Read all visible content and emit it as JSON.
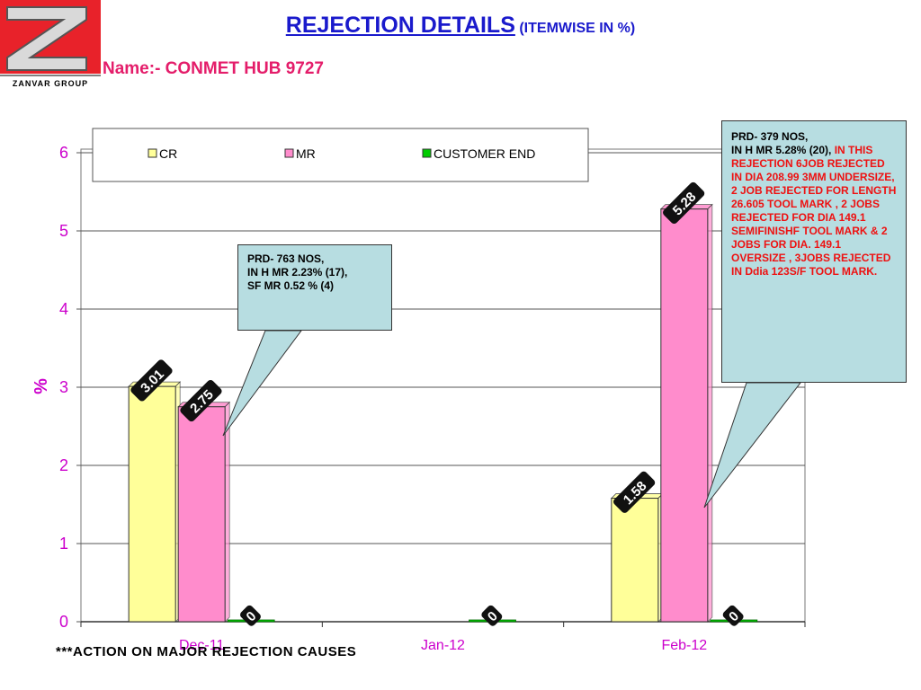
{
  "header": {
    "title": "REJECTION DETAILS",
    "title_suffix": "(ITEMWISE IN %)",
    "subtitle": "Name:- CONMET HUB 9727",
    "logo_text": "ZANVAR GROUP"
  },
  "callouts": [
    {
      "lines": [
        "PRD-  763 NOS,",
        "IN  H MR 2.23% (17),",
        "SF MR 0.52 % (4)"
      ]
    },
    {
      "lead": [
        "PRD-  379 NOS,"
      ],
      "lead_inline": "IN  H MR 5.28% (20), ",
      "highlight": "IN THIS REJECTION 6JOB REJECTED IN DIA 208.99 3MM UNDERSIZE, 2 JOB REJECTED FOR LENGTH 26.605 TOOL MARK , 2 JOBS REJECTED FOR DIA 149.1 SEMIFINISHF TOOL MARK & 2 JOBS FOR DIA. 149.1 OVERSIZE , 3JOBS REJECTED IN Ddia 123S/F TOOL MARK."
    }
  ],
  "footer": "***ACTION ON MAJOR REJECTION CAUSES",
  "colors": {
    "title": "#1a1acc",
    "subtitle": "#e41d6a",
    "axis_text": "#cc00cc",
    "cr": "#ffff99",
    "mr": "#ff8ccc",
    "customer_end": "#00cc00",
    "callout_bg": "#b7dde1",
    "callout_highlight": "#ee1111"
  },
  "chart_data": {
    "type": "bar",
    "categories": [
      "Dec-11",
      "Jan-12",
      "Feb-12"
    ],
    "series": [
      {
        "name": "CR",
        "color": "#ffff99",
        "values": [
          3.01,
          null,
          1.58
        ],
        "labels": [
          "3.01",
          null,
          "1.58"
        ]
      },
      {
        "name": "MR",
        "color": "#ff8ccc",
        "values": [
          2.75,
          null,
          5.28
        ],
        "labels": [
          "2.75",
          null,
          "5.28"
        ]
      },
      {
        "name": "CUSTOMER END",
        "color": "#00cc00",
        "values": [
          0,
          0,
          0
        ],
        "labels": [
          "0",
          "0",
          "0"
        ]
      }
    ],
    "ylabel": "%",
    "ylim": [
      0,
      6
    ],
    "yticks": [
      "0",
      "1",
      "2",
      "3",
      "4",
      "5",
      "6"
    ],
    "grid": true,
    "legend": "top"
  }
}
